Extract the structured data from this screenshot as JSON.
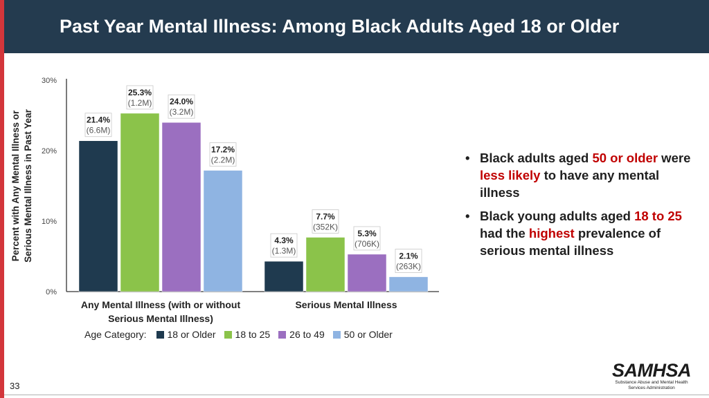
{
  "slide": {
    "title": "Past Year Mental Illness: Among Black Adults Aged 18 or Older",
    "page_number": "33",
    "accent_color": "#d3363b",
    "header_color": "#243b4f"
  },
  "chart_data": {
    "type": "bar",
    "title": "",
    "ylabel": "Percent with Any Mental Illness or Serious Mental Illness in Past Year",
    "ylim": [
      0,
      30
    ],
    "yticks": [
      "0%",
      "10%",
      "20%",
      "30%"
    ],
    "categories": [
      "Any Mental Illness (with or without Serious Mental Illness)",
      "Serious Mental Illness"
    ],
    "category_lines": [
      [
        "Any Mental Illness (with or without",
        "Serious Mental Illness)"
      ],
      [
        "Serious Mental Illness"
      ]
    ],
    "legend_title": "Age Category:",
    "series": [
      {
        "name": "18 or Older",
        "color": "#1f3a4f",
        "values": [
          21.4,
          4.3
        ],
        "labels": [
          "21.4%",
          "4.3%"
        ],
        "counts": [
          "(6.6M)",
          "(1.3M)"
        ]
      },
      {
        "name": "18 to 25",
        "color": "#8bc34a",
        "values": [
          25.3,
          7.7
        ],
        "labels": [
          "25.3%",
          "7.7%"
        ],
        "counts": [
          "(1.2M)",
          "(352K)"
        ]
      },
      {
        "name": "26 to 49",
        "color": "#9b6fc0",
        "values": [
          24.0,
          5.3
        ],
        "labels": [
          "24.0%",
          "5.3%"
        ],
        "counts": [
          "(3.2M)",
          "(706K)"
        ]
      },
      {
        "name": "50 or Older",
        "color": "#8fb4e2",
        "values": [
          17.2,
          2.1
        ],
        "labels": [
          "17.2%",
          "2.1%"
        ],
        "counts": [
          "(2.2M)",
          "(263K)"
        ]
      }
    ],
    "grid": false,
    "legend_position": "bottom"
  },
  "bullets": [
    [
      {
        "t": "Black adults aged ",
        "h": false
      },
      {
        "t": "50 or older",
        "h": true
      },
      {
        "t": " were ",
        "h": false
      },
      {
        "t": "less likely",
        "h": true
      },
      {
        "t": " to have any mental illness",
        "h": false
      }
    ],
    [
      {
        "t": "Black young adults aged ",
        "h": false
      },
      {
        "t": "18 to 25",
        "h": true
      },
      {
        "t": " had the ",
        "h": false
      },
      {
        "t": "highest",
        "h": true
      },
      {
        "t": " prevalence of serious mental illness",
        "h": false
      }
    ]
  ],
  "bullet_symbol": "•",
  "logo": {
    "name": "SAMHSA",
    "subtitle_lines": [
      "Substance Abuse and Mental Health",
      "Services Administration"
    ]
  }
}
